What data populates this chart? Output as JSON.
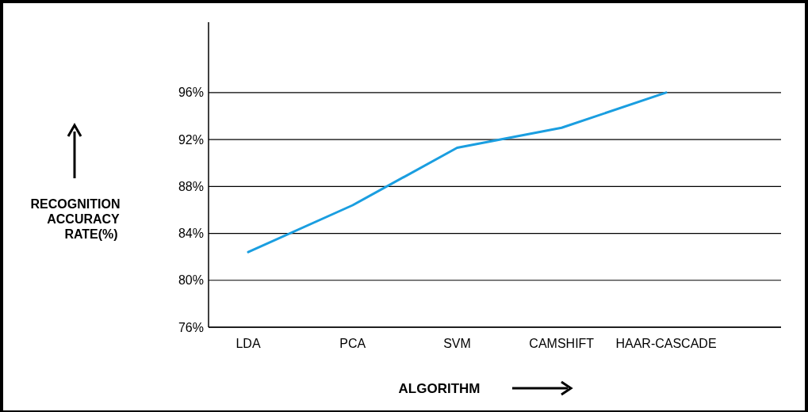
{
  "chart_data": {
    "type": "line",
    "xlabel": "ALGORITHM",
    "ylabel": "RECOGNITION ACCURACY RATE(%)",
    "categories": [
      "LDA",
      "PCA",
      "SVM",
      "CAMSHIFT",
      "HAAR-CASCADE"
    ],
    "series": [
      {
        "color": "#1a9ee0",
        "values": [
          82.4,
          86.4,
          91.3,
          93.0,
          96.0
        ]
      }
    ],
    "ylim": [
      76,
      102
    ],
    "yticks": [
      {
        "value": 76,
        "label": "76%"
      },
      {
        "value": 80,
        "label": "80%"
      },
      {
        "value": 84,
        "label": "84%"
      },
      {
        "value": 88,
        "label": "88%"
      },
      {
        "value": 92,
        "label": "92%"
      },
      {
        "value": 96,
        "label": "96%"
      }
    ],
    "grid": "y",
    "marker": "none",
    "line_style": "solid"
  }
}
